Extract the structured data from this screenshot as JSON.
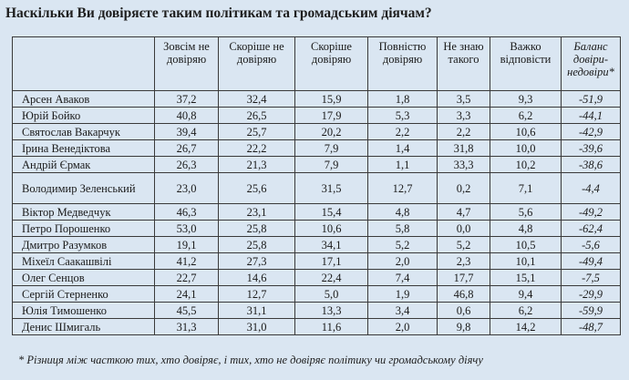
{
  "title": "Наскільки Ви довіряєте таким політикам та громадським діячам?",
  "table": {
    "headers": [
      "",
      "Зовсім не довіряю",
      "Скоріше не довіряю",
      "Скоріше довіряю",
      "Повністю довіряю",
      "Не знаю такого",
      "Важко відповісти",
      "Баланс довіри-недовіри*"
    ],
    "rows": [
      [
        "Арсен Аваков",
        "37,2",
        "32,4",
        "15,9",
        "1,8",
        "3,5",
        "9,3",
        "-51,9"
      ],
      [
        "Юрій Бойко",
        "40,8",
        "26,5",
        "17,9",
        "5,3",
        "3,3",
        "6,2",
        "-44,1"
      ],
      [
        "Святослав Вакарчук",
        "39,4",
        "25,7",
        "20,2",
        "2,2",
        "2,2",
        "10,6",
        "-42,9"
      ],
      [
        "Ірина Венедіктова",
        "26,7",
        "22,2",
        "7,9",
        "1,4",
        "31,8",
        "10,0",
        "-39,6"
      ],
      [
        "Андрій Єрмак",
        "26,3",
        "21,3",
        "7,9",
        "1,1",
        "33,3",
        "10,2",
        "-38,6"
      ],
      [
        "Володимир Зеленський",
        "23,0",
        "25,6",
        "31,5",
        "12,7",
        "0,2",
        "7,1",
        "-4,4"
      ],
      [
        "Віктор Медведчук",
        "46,3",
        "23,1",
        "15,4",
        "4,8",
        "4,7",
        "5,6",
        "-49,2"
      ],
      [
        "Петро Порошенко",
        "53,0",
        "25,8",
        "10,6",
        "5,8",
        "0,0",
        "4,8",
        "-62,4"
      ],
      [
        "Дмитро Разумков",
        "19,1",
        "25,8",
        "34,1",
        "5,2",
        "5,2",
        "10,5",
        "-5,6"
      ],
      [
        "Міхеїл Саакашвілі",
        "41,2",
        "27,3",
        "17,1",
        "2,0",
        "2,3",
        "10,1",
        "-49,4"
      ],
      [
        "Олег Сенцов",
        "22,7",
        "14,6",
        "22,4",
        "7,4",
        "17,7",
        "15,1",
        "-7,5"
      ],
      [
        "Сергій Стерненко",
        "24,1",
        "12,7",
        "5,0",
        "1,9",
        "46,8",
        "9,4",
        "-29,9"
      ],
      [
        "Юлія Тимошенко",
        "45,5",
        "31,1",
        "13,3",
        "3,4",
        "0,6",
        "6,2",
        "-59,9"
      ],
      [
        "Денис Шмигаль",
        "31,3",
        "31,0",
        "11,6",
        "2,0",
        "9,8",
        "14,2",
        "-48,7"
      ]
    ]
  },
  "footnote": "* Різниця між часткою тих, хто довіряє, і тих, хто не довіряє політику чи громадському діячу",
  "colors": {
    "background": "#dae6f2",
    "border": "#3a3a3a",
    "text": "#1a1a1a"
  }
}
